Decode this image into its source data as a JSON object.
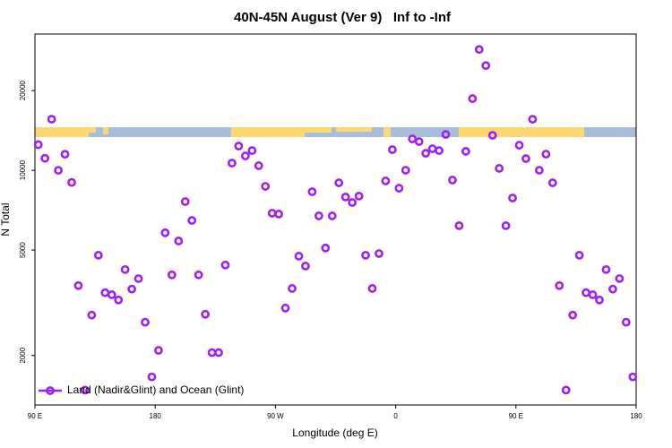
{
  "chart_data": {
    "type": "scatter",
    "title": "40N-45N August (Ver 9)   Inf to -Inf",
    "x_label": "Longitude (deg E)",
    "y_label": "N Total",
    "log_y": true,
    "legend": "bottom-left",
    "xlim": [
      90,
      540
    ],
    "xticks": [
      {
        "value": 90,
        "label": "90 E"
      },
      180,
      {
        "value": 270,
        "label": "90 W"
      },
      {
        "value": 360,
        "label": "0"
      },
      {
        "value": 450,
        "label": "90 E"
      },
      {
        "value": 540,
        "label": "180"
      }
    ],
    "ylim": [
      1300,
      32700
    ],
    "yticks": [
      2000,
      5000,
      10000,
      20000
    ],
    "x": [
      92.5,
      97.5,
      102.5,
      107.5,
      112.5,
      117.5,
      122.5,
      127.5,
      132.5,
      137.5,
      142.5,
      147.5,
      152.5,
      157.5,
      162.5,
      167.5,
      172.5,
      177.5,
      182.5,
      187.5,
      192.5,
      197.5,
      202.5,
      207.5,
      212.5,
      217.5,
      222.5,
      227.5,
      232.5,
      237.5,
      242.5,
      247.5,
      252.5,
      257.5,
      262.5,
      267.5,
      272.5,
      277.5,
      282.5,
      287.5,
      292.5,
      297.5,
      302.5,
      307.5,
      312.5,
      317.5,
      322.5,
      327.5,
      332.5,
      337.5,
      342.5,
      347.5,
      352.5,
      357.5,
      362.5,
      367.5,
      372.5,
      377.5,
      382.5,
      387.5,
      392.5,
      397.5,
      402.5,
      407.5,
      412.5,
      417.5,
      422.5,
      427.5,
      432.5,
      437.5,
      442.5,
      447.5,
      452.5,
      457.5,
      462.5,
      467.5,
      472.5,
      477.5,
      482.5,
      487.5,
      492.5,
      497.5,
      502.5,
      507.5,
      512.5,
      517.5,
      522.5,
      527.5,
      532.5,
      537.5
    ],
    "series": [
      {
        "name": "Land (Nadir&Glint) and Ocean (Glint)",
        "color": "#a020f0",
        "values": [
          12500,
          11100,
          15600,
          10000,
          11500,
          9000,
          3670,
          1480,
          2840,
          4780,
          3450,
          3390,
          3240,
          4220,
          3560,
          3900,
          2670,
          1660,
          2090,
          5810,
          4030,
          5410,
          7620,
          6470,
          4030,
          2860,
          2050,
          2050,
          4390,
          10650,
          12350,
          11330,
          11870,
          10410,
          8700,
          6890,
          6840,
          3020,
          3580,
          4740,
          4350,
          8300,
          6730,
          5090,
          6730,
          8970,
          7930,
          7560,
          7990,
          4780,
          3580,
          4850,
          9120,
          11970,
          8560,
          10010,
          13140,
          12840,
          11600,
          12060,
          11870,
          13660,
          9190,
          6180,
          11790,
          18650,
          28600,
          24860,
          13560,
          10170,
          6180,
          7860,
          12440,
          11070,
          15590,
          10010,
          11510,
          8970,
          3670,
          1480,
          2840,
          4780,
          3450,
          3390,
          3240,
          4220,
          3560,
          3900,
          2670,
          1660
        ]
      }
    ]
  }
}
